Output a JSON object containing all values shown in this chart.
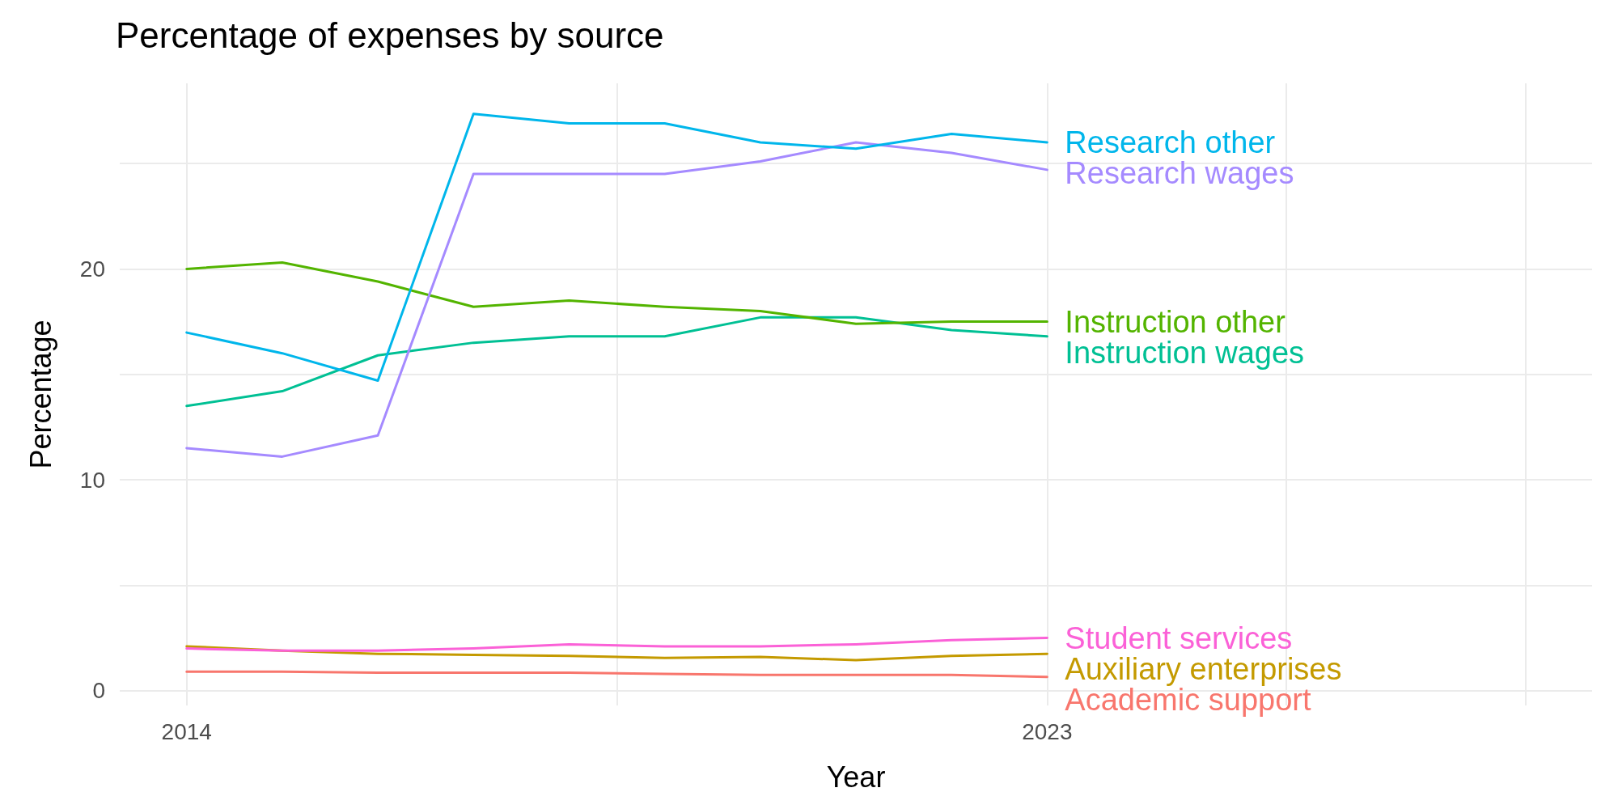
{
  "chart_data": {
    "type": "line",
    "title": "Percentage of expenses by source",
    "xlabel": "Year",
    "ylabel": "Percentage",
    "x": [
      2014,
      2015,
      2016,
      2017,
      2018,
      2019,
      2020,
      2021,
      2022,
      2023
    ],
    "xlim": [
      2013.3,
      2028.7
    ],
    "xticks": [
      2014,
      {
        "value": 2018.5,
        "label": null
      },
      2023,
      {
        "value": 2025.5,
        "label": null
      },
      {
        "value": 2028,
        "label": null
      }
    ],
    "ylim": [
      -0.7,
      28.8
    ],
    "yticks": [
      0,
      {
        "value": 5,
        "label": null
      },
      10,
      {
        "value": 15,
        "label": null
      },
      20,
      {
        "value": 25,
        "label": null
      }
    ],
    "grid": true,
    "legend": false,
    "marker": "none",
    "line_style": "solid",
    "series": [
      {
        "name": "Research other",
        "color": "#00b6eb",
        "values": [
          16.98,
          16.0,
          14.7,
          27.35,
          26.9,
          26.9,
          26.0,
          25.7,
          26.4,
          26.0
        ]
      },
      {
        "name": "Research wages",
        "color": "#a58aff",
        "values": [
          11.5,
          11.1,
          12.1,
          24.5,
          24.5,
          24.5,
          25.1,
          26.0,
          25.5,
          24.7
        ]
      },
      {
        "name": "Instruction other",
        "color": "#53b400",
        "values": [
          20.0,
          20.3,
          19.4,
          18.2,
          18.5,
          18.2,
          18.0,
          17.4,
          17.5,
          17.5
        ]
      },
      {
        "name": "Instruction wages",
        "color": "#00c094",
        "values": [
          13.5,
          14.2,
          15.9,
          16.5,
          16.8,
          16.8,
          17.7,
          17.7,
          17.1,
          16.8
        ]
      },
      {
        "name": "Student services",
        "color": "#fb61d7",
        "values": [
          2.0,
          1.9,
          1.9,
          2.0,
          2.2,
          2.1,
          2.1,
          2.2,
          2.4,
          2.5
        ]
      },
      {
        "name": "Auxiliary enterprises",
        "color": "#c49a00",
        "values": [
          2.1,
          1.9,
          1.75,
          1.7,
          1.65,
          1.55,
          1.6,
          1.45,
          1.65,
          1.75
        ]
      },
      {
        "name": "Academic support",
        "color": "#f8766d",
        "values": [
          0.9,
          0.9,
          0.85,
          0.85,
          0.85,
          0.8,
          0.75,
          0.75,
          0.75,
          0.65
        ]
      }
    ]
  }
}
